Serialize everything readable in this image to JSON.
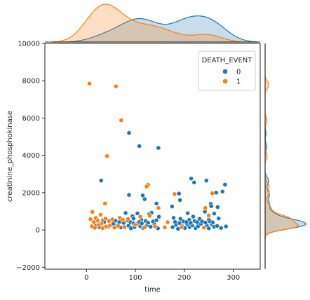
{
  "chart_data": {
    "type": "scatter",
    "title": "",
    "xlabel": "time",
    "ylabel": "creatinine_phosphokinase",
    "xlim": [
      -85,
      355
    ],
    "ylim": [
      -2100,
      10000
    ],
    "xticks": [
      0,
      100,
      200,
      300
    ],
    "yticks": [
      -2000,
      0,
      2000,
      4000,
      6000,
      8000,
      10000
    ],
    "grid": false,
    "legend": {
      "title": "DEATH_EVENT",
      "placement": "top-right",
      "entries": [
        "0",
        "1"
      ]
    },
    "colors": {
      "0": "#1f77b4",
      "1": "#ff7f0e"
    },
    "marginals": {
      "type": "kde",
      "x_peaks": {
        "0": [
          95,
          210
        ],
        "1": [
          30
        ]
      },
      "y_peak": {
        "0": 250,
        "1": 250
      }
    },
    "series": [
      {
        "name": "0",
        "points": [
          [
            30,
            2650
          ],
          [
            87,
            5200
          ],
          [
            108,
            4500
          ],
          [
            147,
            4400
          ],
          [
            143,
            1420
          ],
          [
            115,
            1850
          ],
          [
            119,
            1650
          ],
          [
            87,
            1880
          ],
          [
            175,
            1260
          ],
          [
            191,
            1600
          ],
          [
            214,
            2760
          ],
          [
            220,
            2550
          ],
          [
            189,
            1950
          ],
          [
            245,
            2650
          ],
          [
            254,
            1400
          ],
          [
            265,
            2000
          ],
          [
            283,
            2430
          ],
          [
            278,
            2060
          ],
          [
            268,
            1230
          ],
          [
            255,
            1280
          ],
          [
            133,
            920
          ],
          [
            80,
            910
          ],
          [
            94,
            740
          ],
          [
            104,
            890
          ],
          [
            128,
            840
          ],
          [
            96,
            620
          ],
          [
            112,
            560
          ],
          [
            121,
            480
          ],
          [
            148,
            710
          ],
          [
            178,
            650
          ],
          [
            192,
            600
          ],
          [
            207,
            900
          ],
          [
            210,
            540
          ],
          [
            218,
            720
          ],
          [
            231,
            600
          ],
          [
            242,
            980
          ],
          [
            250,
            550
          ],
          [
            261,
            880
          ],
          [
            270,
            620
          ],
          [
            34,
            520
          ],
          [
            45,
            180
          ],
          [
            55,
            340
          ],
          [
            63,
            250
          ],
          [
            70,
            140
          ],
          [
            76,
            380
          ],
          [
            86,
            230
          ],
          [
            91,
            90
          ],
          [
            98,
            160
          ],
          [
            103,
            320
          ],
          [
            110,
            200
          ],
          [
            116,
            110
          ],
          [
            124,
            260
          ],
          [
            131,
            170
          ],
          [
            139,
            300
          ],
          [
            146,
            90
          ],
          [
            176,
            150
          ],
          [
            183,
            280
          ],
          [
            187,
            60
          ],
          [
            195,
            210
          ],
          [
            201,
            110
          ],
          [
            206,
            310
          ],
          [
            211,
            160
          ],
          [
            216,
            250
          ],
          [
            223,
            100
          ],
          [
            228,
            200
          ],
          [
            234,
            330
          ],
          [
            239,
            130
          ],
          [
            246,
            240
          ],
          [
            250,
            90
          ],
          [
            256,
            310
          ],
          [
            261,
            170
          ],
          [
            267,
            220
          ],
          [
            275,
            110
          ],
          [
            285,
            190
          ],
          [
            36,
            420
          ],
          [
            20,
            230
          ],
          [
            27,
            150
          ],
          [
            59,
            500
          ],
          [
            67,
            420
          ],
          [
            84,
            510
          ],
          [
            90,
            420
          ],
          [
            96,
            360
          ],
          [
            108,
            430
          ],
          [
            113,
            350
          ],
          [
            126,
            390
          ],
          [
            136,
            460
          ],
          [
            143,
            520
          ],
          [
            181,
            430
          ],
          [
            190,
            370
          ],
          [
            198,
            460
          ],
          [
            204,
            420
          ],
          [
            213,
            380
          ],
          [
            221,
            480
          ],
          [
            226,
            420
          ],
          [
            236,
            460
          ],
          [
            243,
            400
          ],
          [
            252,
            470
          ],
          [
            258,
            410
          ]
        ]
      },
      {
        "name": "1",
        "points": [
          [
            6,
            7850
          ],
          [
            60,
            7700
          ],
          [
            71,
            5880
          ],
          [
            42,
            3960
          ],
          [
            126,
            2420
          ],
          [
            123,
            2330
          ],
          [
            38,
            1420
          ],
          [
            147,
            1180
          ],
          [
            257,
            1970
          ],
          [
            180,
            1930
          ],
          [
            243,
            1180
          ],
          [
            12,
            970
          ],
          [
            29,
            820
          ],
          [
            19,
            640
          ],
          [
            8,
            580
          ],
          [
            15,
            420
          ],
          [
            23,
            500
          ],
          [
            31,
            350
          ],
          [
            39,
            610
          ],
          [
            46,
            480
          ],
          [
            53,
            570
          ],
          [
            68,
            650
          ],
          [
            74,
            540
          ],
          [
            85,
            590
          ],
          [
            110,
            710
          ],
          [
            129,
            760
          ],
          [
            140,
            190
          ],
          [
            160,
            140
          ],
          [
            166,
            420
          ],
          [
            194,
            160
          ],
          [
            240,
            130
          ],
          [
            250,
            780
          ],
          [
            11,
            200
          ],
          [
            17,
            120
          ],
          [
            25,
            270
          ],
          [
            33,
            100
          ],
          [
            40,
            180
          ],
          [
            48,
            240
          ],
          [
            57,
            130
          ],
          [
            65,
            220
          ],
          [
            78,
            160
          ],
          [
            100,
            280
          ],
          [
            119,
            150
          ]
        ]
      }
    ]
  }
}
